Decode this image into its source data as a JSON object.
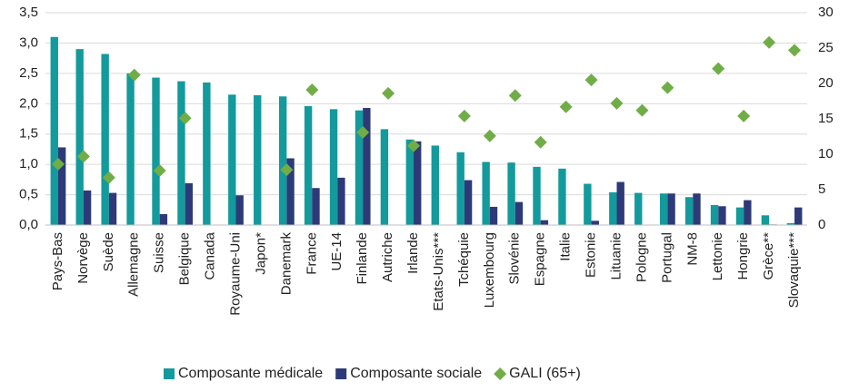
{
  "chart_data": {
    "type": "bar",
    "categories": [
      "Pays-Bas",
      "Norvège",
      "Suède",
      "Allemagne",
      "Suisse",
      "Belgique",
      "Canada",
      "Royaume-Uni",
      "Japon*",
      "Danemark",
      "France",
      "UE-14",
      "Finlande",
      "Autriche",
      "Irlande",
      "Etats-Unis***",
      "Tchéquie",
      "Luxembourg",
      "Slovénie",
      "Espagne",
      "Italie",
      "Estonie",
      "Lituanie",
      "Pologne",
      "Portugal",
      "NM-8",
      "Lettonie",
      "Hongrie",
      "Grèce**",
      "Slovaquie***"
    ],
    "series": [
      {
        "name": "Composante médicale",
        "color": "#139a9c",
        "values": [
          3.1,
          2.9,
          2.82,
          2.5,
          2.43,
          2.37,
          2.35,
          2.15,
          2.14,
          2.12,
          1.96,
          1.91,
          1.89,
          1.58,
          1.41,
          1.31,
          1.2,
          1.04,
          1.03,
          0.96,
          0.93,
          0.68,
          0.54,
          0.53,
          0.52,
          0.46,
          0.33,
          0.29,
          0.16,
          0.03
        ]
      },
      {
        "name": "Composante sociale",
        "color": "#2e3a78",
        "values": [
          1.28,
          0.57,
          0.53,
          null,
          0.18,
          0.69,
          null,
          0.49,
          null,
          1.1,
          0.61,
          0.78,
          1.93,
          null,
          1.38,
          null,
          0.74,
          0.3,
          0.38,
          0.08,
          null,
          0.07,
          0.71,
          null,
          0.52,
          0.52,
          0.31,
          0.41,
          0.01,
          0.29
        ]
      },
      {
        "name": "GALI (65+)",
        "color": "#70ad47",
        "axis": "y2",
        "values": [
          8.6,
          9.7,
          6.7,
          21.2,
          7.7,
          15.1,
          null,
          null,
          null,
          7.8,
          19.1,
          null,
          13.1,
          18.6,
          11.2,
          null,
          15.4,
          12.6,
          18.3,
          11.7,
          16.7,
          20.5,
          17.2,
          16.2,
          19.4,
          null,
          22.1,
          15.4,
          25.8,
          24.7
        ]
      }
    ],
    "ylim": [
      0,
      3.5
    ],
    "yticks": [
      {
        "value": 0,
        "label": "0,0"
      },
      {
        "value": 0.5,
        "label": "0,5"
      },
      {
        "value": 1,
        "label": "1,0"
      },
      {
        "value": 1.5,
        "label": "1,5"
      },
      {
        "value": 2,
        "label": "2,0"
      },
      {
        "value": 2.5,
        "label": "2,5"
      },
      {
        "value": 3,
        "label": "3,0"
      },
      {
        "value": 3.5,
        "label": "3,5"
      }
    ],
    "y2lim": [
      0,
      30
    ],
    "y2ticks": [
      0,
      5,
      10,
      15,
      20,
      25,
      30
    ],
    "grid": true,
    "legend": "bottom"
  }
}
